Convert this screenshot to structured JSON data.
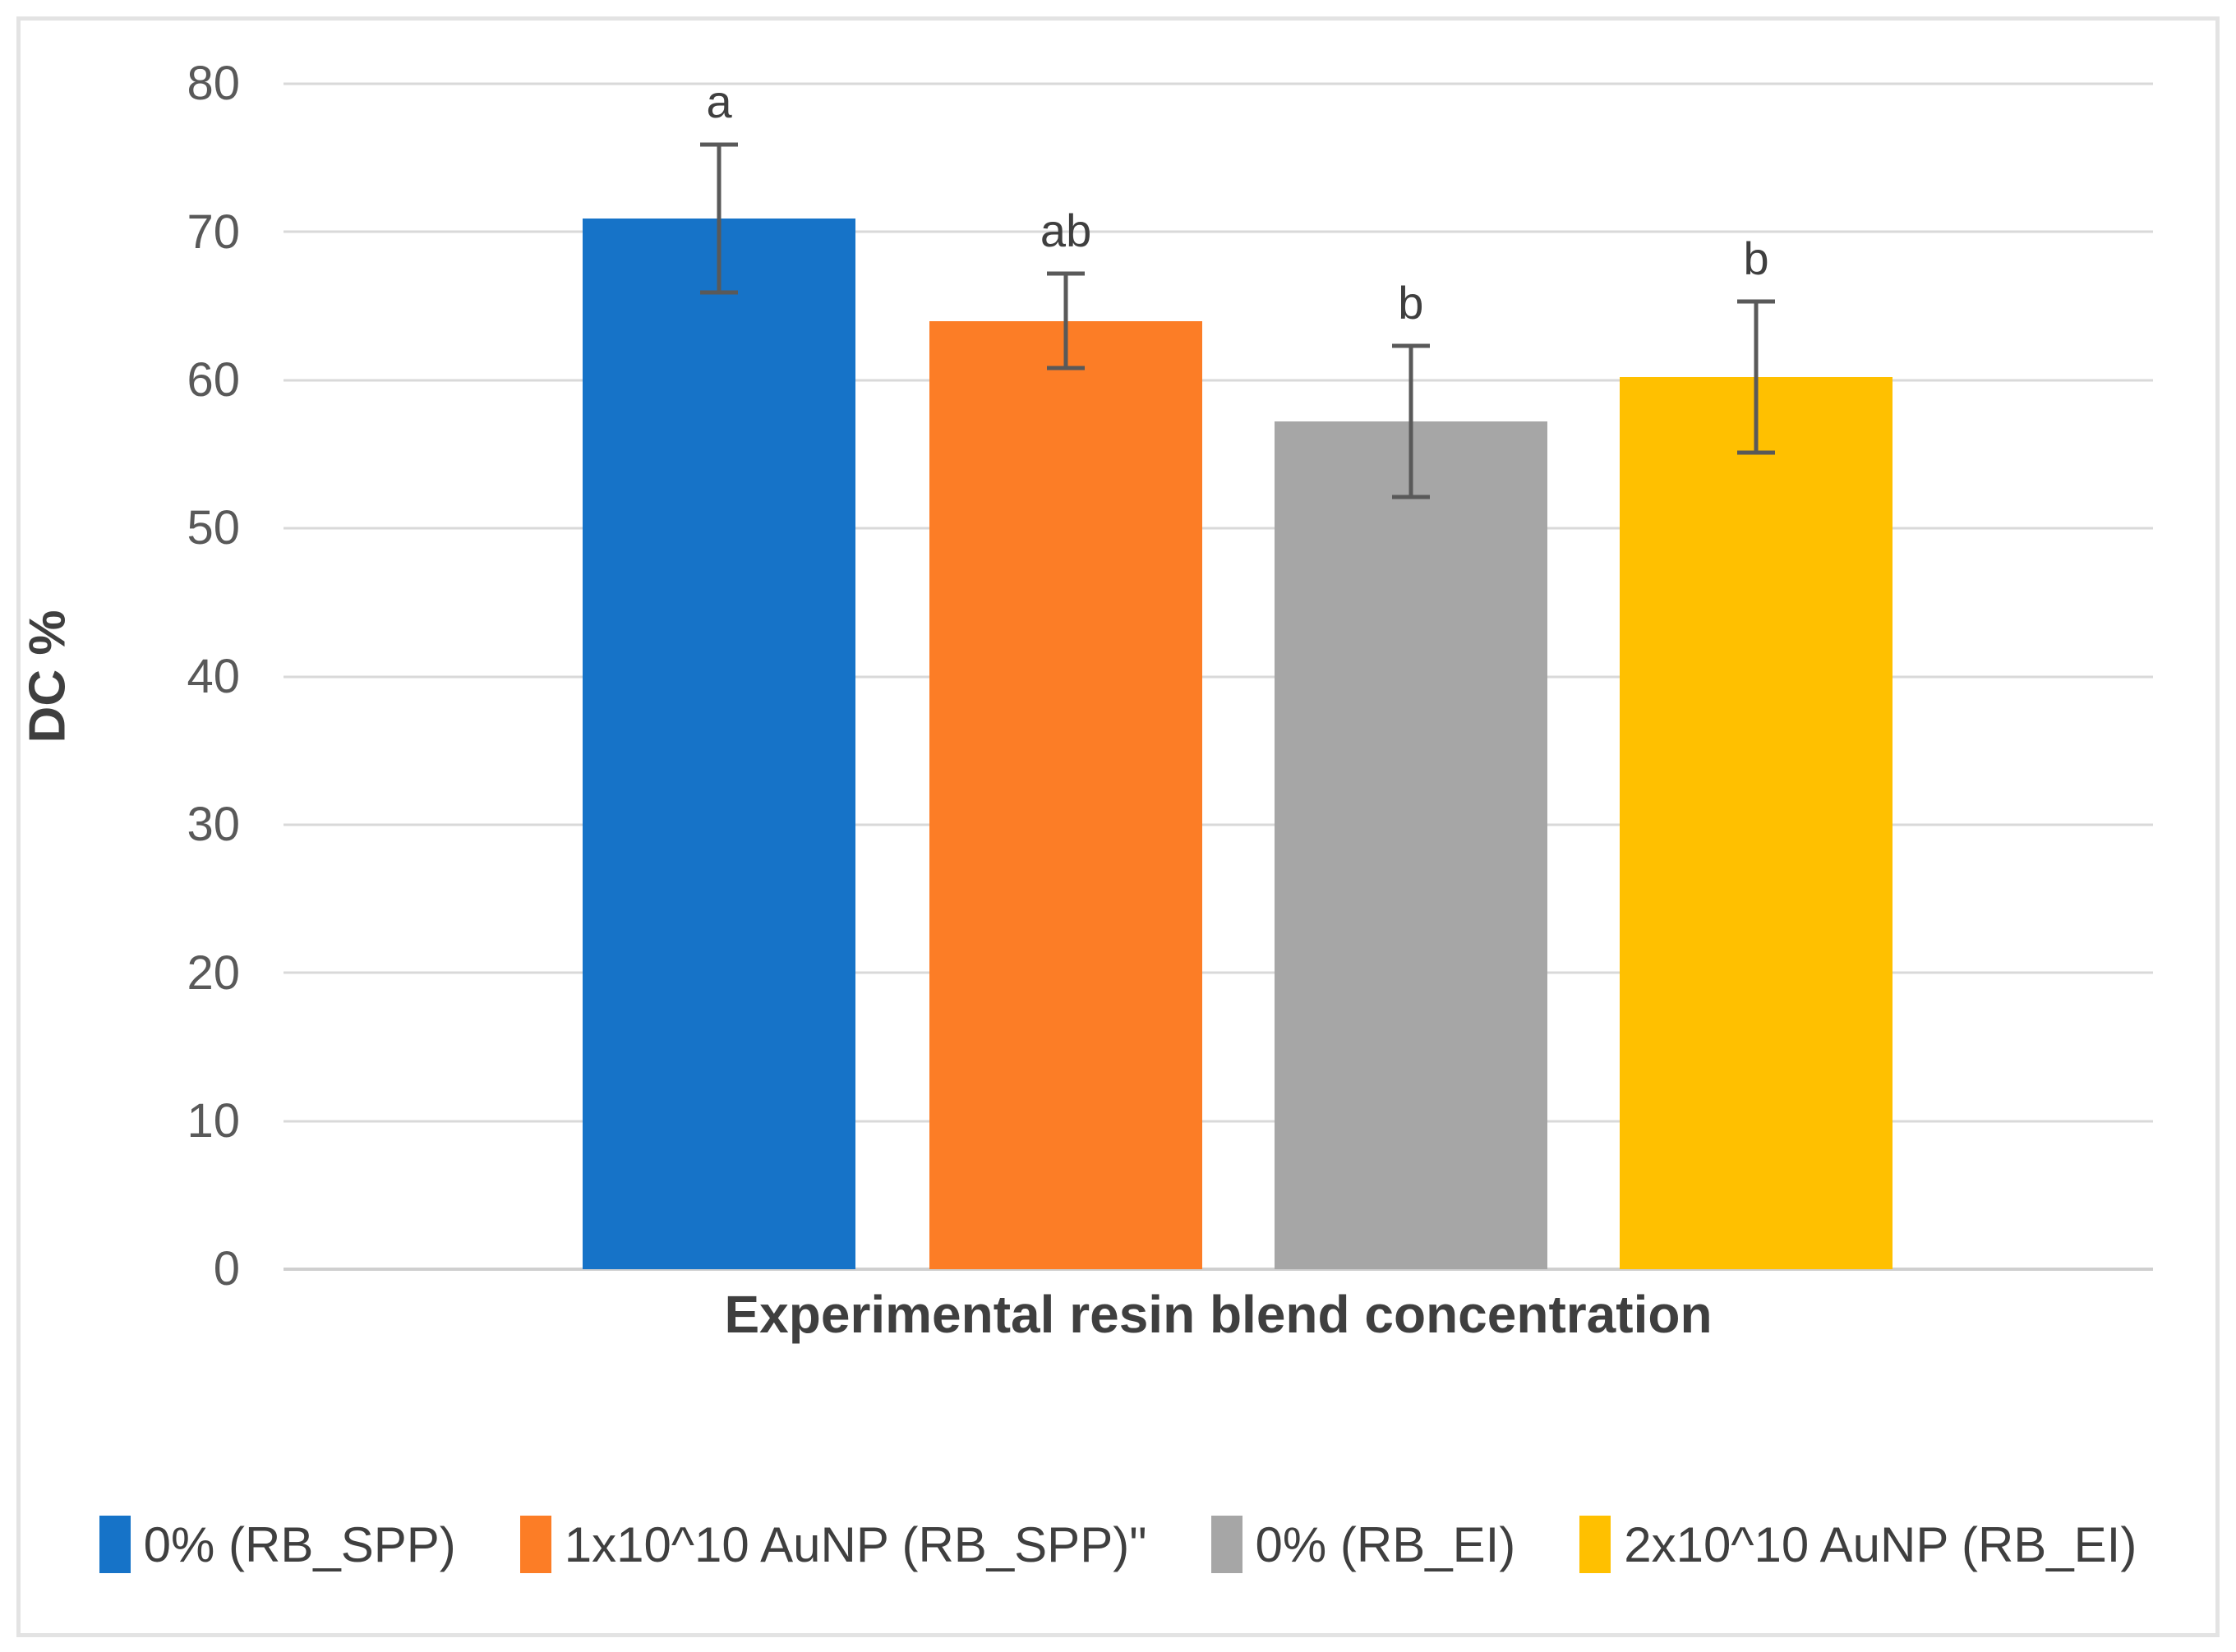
{
  "chart_data": {
    "type": "bar",
    "title": "",
    "xlabel": "Experimental resin blend concentration",
    "ylabel": "DC %",
    "ylim": [
      0,
      80
    ],
    "yticks": [
      0,
      10,
      20,
      30,
      40,
      50,
      60,
      70,
      80
    ],
    "grid": true,
    "legend_position": "bottom",
    "categories": [
      "0% (RB_SPP)",
      "1x10^10 AuNP (RB_SPP)\"",
      "0% (RB_EI)",
      "2x10^10 AuNP (RB_EI)"
    ],
    "values": [
      70.9,
      64.0,
      57.2,
      60.2
    ],
    "error_bars": [
      5.0,
      3.2,
      5.1,
      5.1
    ],
    "bar_colors": [
      "#1673C8",
      "#FC7D26",
      "#A6A6A6",
      "#FFC000"
    ],
    "significance_letters": [
      "a",
      "ab",
      "b",
      "b"
    ],
    "style_colors": {
      "gridline": "#D9D9D9",
      "axis_line": "#CFCFCF",
      "tick_label": "#595959",
      "axis_title": "#3F3F3F",
      "error_bar": "#595959",
      "frame_border": "#E3E3E3",
      "background": "#FFFFFF"
    }
  },
  "legend": {
    "items": [
      {
        "label": "0% (RB_SPP)",
        "color": "#1673C8"
      },
      {
        "label": "1x10^10 AuNP (RB_SPP)\"",
        "color": "#FC7D26"
      },
      {
        "label": "0% (RB_EI)",
        "color": "#A6A6A6"
      },
      {
        "label": "2x10^10 AuNP (RB_EI)",
        "color": "#FFC000"
      }
    ]
  }
}
